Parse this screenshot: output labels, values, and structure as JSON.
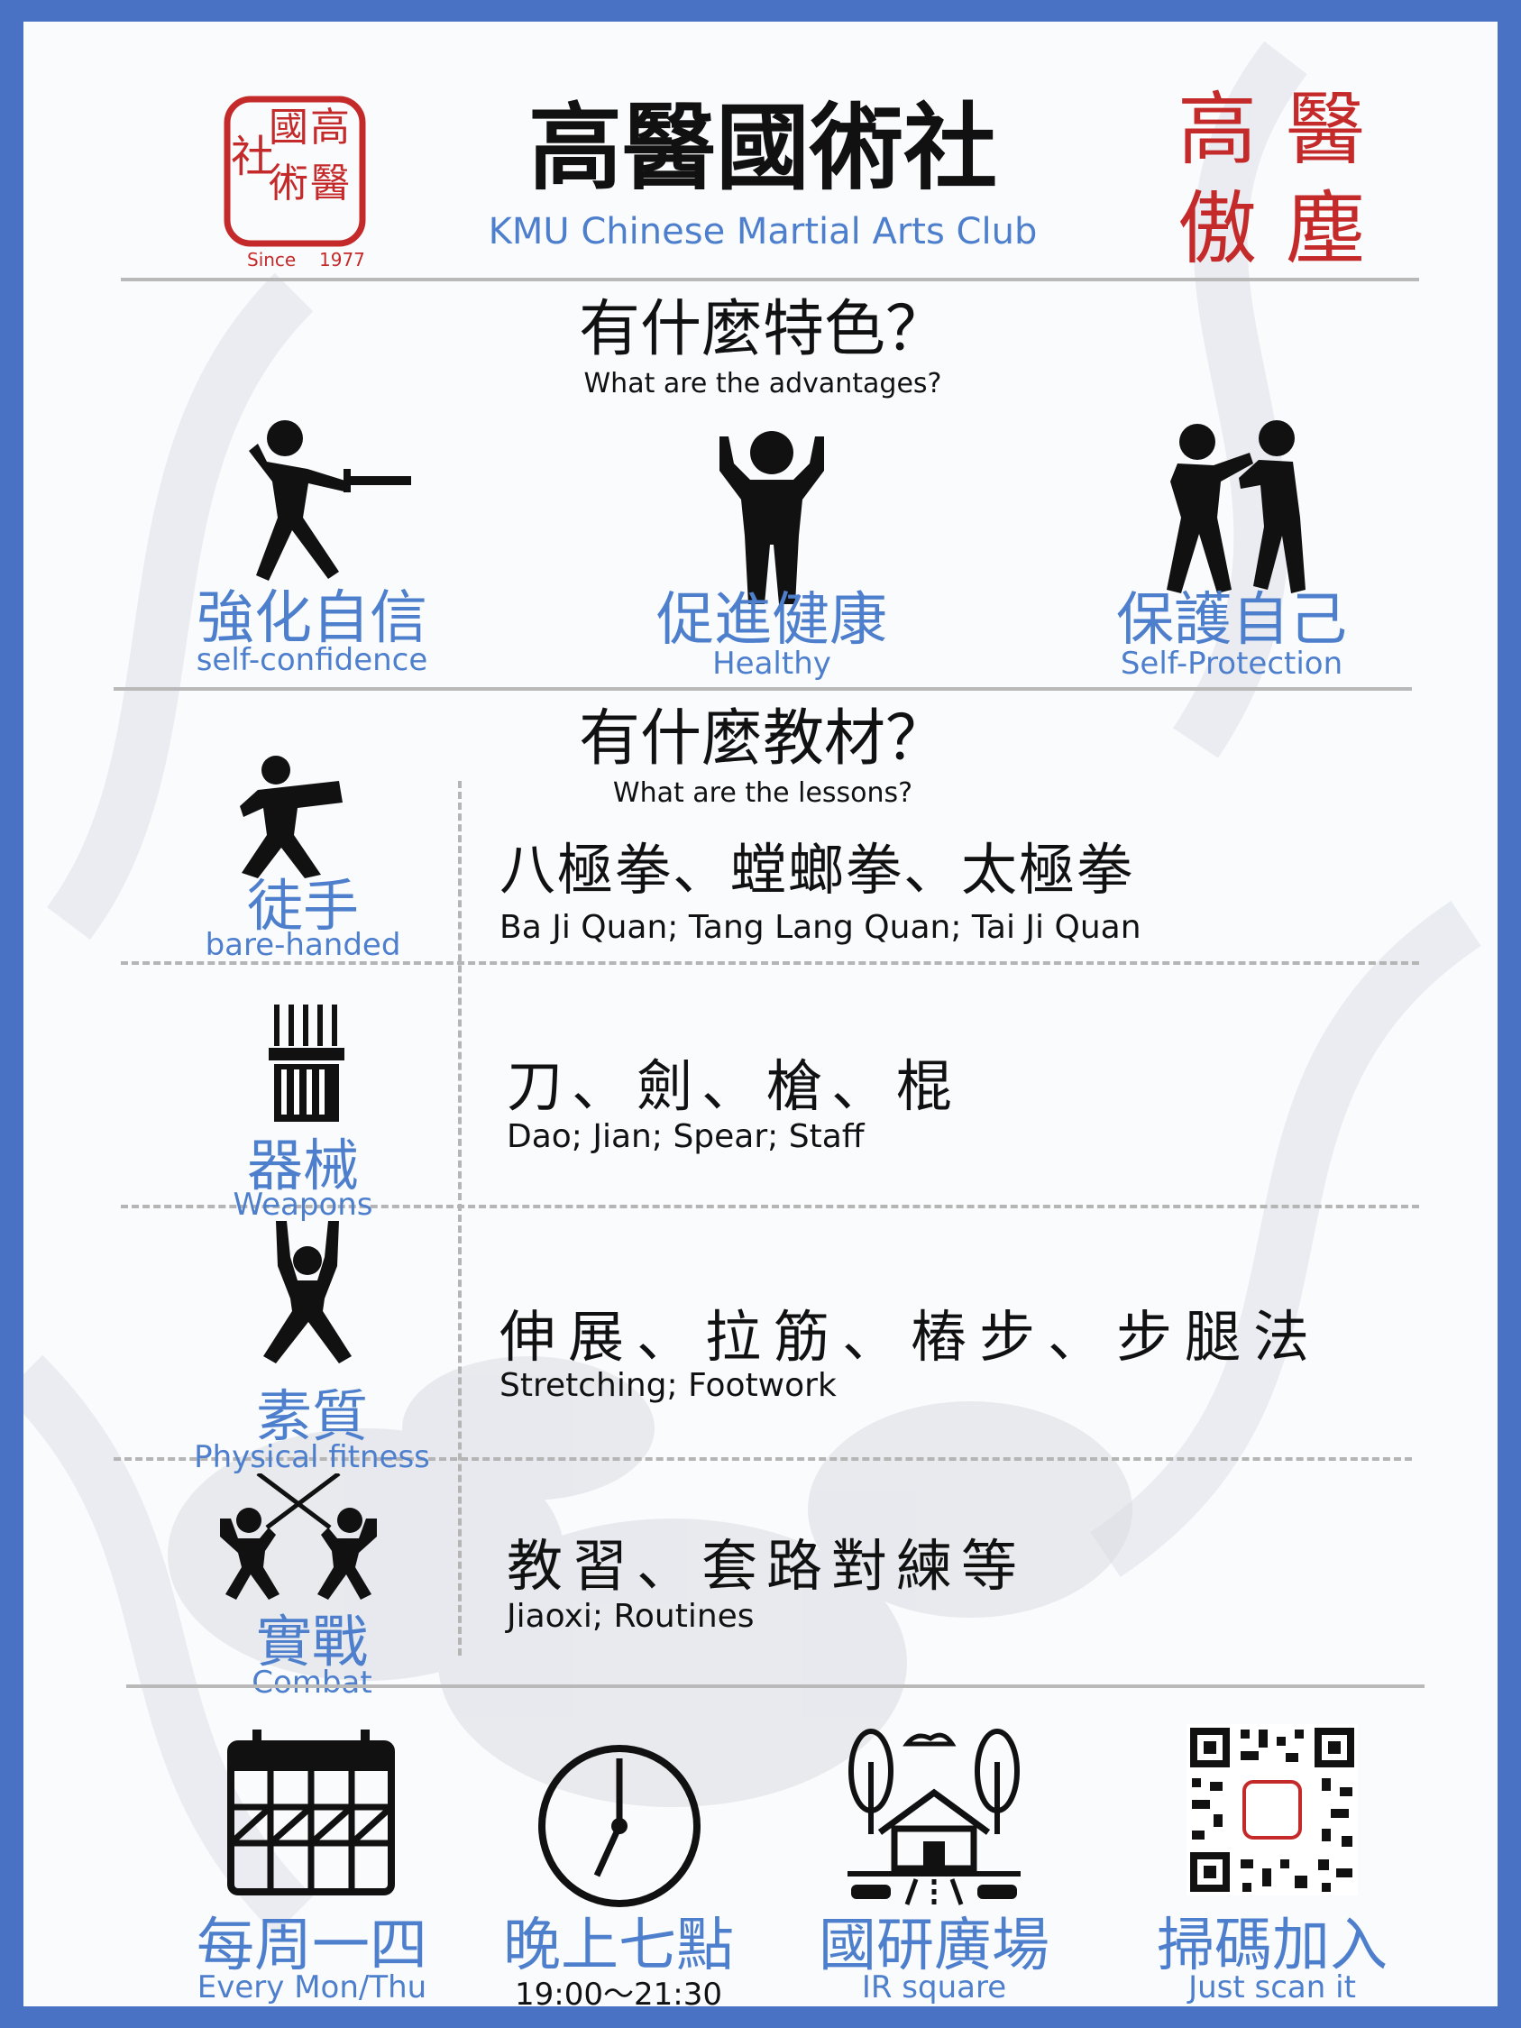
{
  "header": {
    "seal_chars": [
      "高",
      "醫",
      "國",
      "術",
      "社"
    ],
    "seal_since": "Since",
    "seal_year": "1977",
    "title_cn": "高醫國術社",
    "title_en": "KMU Chinese Martial Arts Club",
    "motto_chars": [
      "醫",
      "高",
      "塵",
      "傲"
    ]
  },
  "features": {
    "heading_cn": "有什麼特色？",
    "heading_en": "What are the  advantages?",
    "items": [
      {
        "icon": "fencer-icon",
        "label_cn": "強化自信",
        "label_en": "self-confidence"
      },
      {
        "icon": "strong-man-icon",
        "label_cn": "促進健康",
        "label_en": "Healthy"
      },
      {
        "icon": "self-defense-icon",
        "label_cn": "保護自己",
        "label_en": "Self-Protection"
      }
    ]
  },
  "lessons": {
    "heading_cn": "有什麼教材？",
    "heading_en": "What are the lessons?",
    "rows": [
      {
        "icon": "kungfu-stance-icon",
        "category_cn": "徒手",
        "category_en": "bare-handed",
        "content_cn": "八極拳、螳螂拳、太極拳",
        "content_en": "Ba Ji Quan; Tang Lang Quan; Tai Ji Quan"
      },
      {
        "icon": "weapon-rack-icon",
        "category_cn": "器械",
        "category_en": "Weapons",
        "content_cn": "刀、劍、槍、棍",
        "content_en": "Dao; Jian; Spear; Staff"
      },
      {
        "icon": "stretching-figure-icon",
        "category_cn": "素質",
        "category_en": "Physical fitness",
        "content_cn": "伸展、拉筋、樁步、步腿法",
        "content_en": "Stretching; Footwork"
      },
      {
        "icon": "sword-duel-icon",
        "category_cn": "實戰",
        "category_en": "Combat",
        "content_cn": "教習、套路對練等",
        "content_en": "Jiaoxi; Routines"
      }
    ]
  },
  "info": [
    {
      "icon": "calendar-icon",
      "label_cn": "每周一四",
      "label_en": "Every Mon/Thu"
    },
    {
      "icon": "clock-icon",
      "label_cn": "晚上七點",
      "label_en": "19:00～21:30"
    },
    {
      "icon": "park-square-icon",
      "label_cn": "國研廣場",
      "label_en": "IR square"
    },
    {
      "icon": "qr-code-icon",
      "label_cn": "掃碼加入",
      "label_en": "Just scan it"
    }
  ],
  "colors": {
    "border": "#4a72c4",
    "accent_blue": "#4d7fcd",
    "seal_red": "#c52a2a",
    "divider": "#b9b9b9"
  }
}
